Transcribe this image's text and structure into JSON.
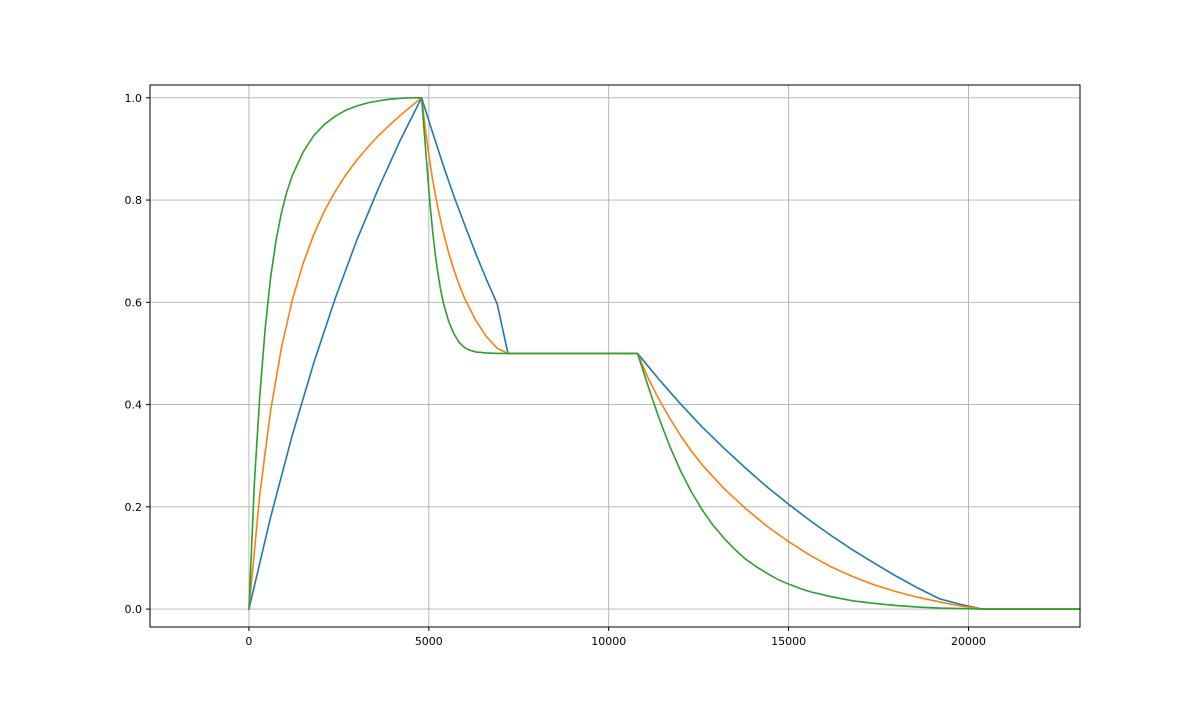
{
  "chart_data": {
    "type": "line",
    "title": "",
    "xlabel": "",
    "ylabel": "",
    "xlim": [
      -2750,
      23100
    ],
    "ylim": [
      -0.035,
      1.025
    ],
    "xticks": [
      0,
      5000,
      10000,
      15000,
      20000
    ],
    "xtick_labels": [
      "0",
      "5000",
      "10000",
      "15000",
      "20000"
    ],
    "yticks": [
      0.0,
      0.2,
      0.4,
      0.6,
      0.8,
      1.0
    ],
    "ytick_labels": [
      "0.0",
      "0.2",
      "0.4",
      "0.6",
      "0.8",
      "1.0"
    ],
    "grid": true,
    "legend": "none",
    "colors": [
      "#1f77b4",
      "#ff7f0e",
      "#2ca02c"
    ],
    "series": [
      {
        "color": "#1f77b4",
        "x": [
          0,
          600,
          1200,
          1800,
          2400,
          3000,
          3600,
          4200,
          4800,
          5100,
          5400,
          5700,
          6000,
          6300,
          6600,
          6900,
          7200,
          8000,
          9000,
          10000,
          10800,
          11400,
          12000,
          12600,
          13200,
          13800,
          14400,
          15000,
          15600,
          16200,
          16800,
          17400,
          18000,
          18600,
          19200,
          19800,
          20400,
          21500,
          23100
        ],
        "y": [
          0.0,
          0.179,
          0.339,
          0.481,
          0.608,
          0.722,
          0.823,
          0.916,
          1.0,
          0.933,
          0.868,
          0.807,
          0.751,
          0.696,
          0.645,
          0.597,
          0.5,
          0.5,
          0.5,
          0.5,
          0.5,
          0.449,
          0.401,
          0.356,
          0.315,
          0.276,
          0.239,
          0.205,
          0.173,
          0.143,
          0.115,
          0.089,
          0.064,
          0.041,
          0.02,
          0.009,
          0.0,
          0.0,
          0.0
        ]
      },
      {
        "color": "#ff7f0e",
        "x": [
          0,
          300,
          600,
          900,
          1200,
          1500,
          1800,
          2100,
          2400,
          2700,
          3000,
          3300,
          3600,
          3900,
          4200,
          4500,
          4800,
          4950,
          5100,
          5250,
          5400,
          5550,
          5700,
          5850,
          6000,
          6300,
          6600,
          6900,
          7200,
          8000,
          9000,
          10000,
          10800,
          11100,
          11400,
          11700,
          12000,
          12300,
          12600,
          13200,
          13800,
          14400,
          15000,
          15600,
          16200,
          16800,
          17400,
          18000,
          18600,
          19200,
          19800,
          20400,
          21500,
          23100
        ],
        "y": [
          0.0,
          0.223,
          0.387,
          0.51,
          0.603,
          0.675,
          0.732,
          0.779,
          0.817,
          0.85,
          0.878,
          0.903,
          0.926,
          0.946,
          0.965,
          0.983,
          1.0,
          0.913,
          0.842,
          0.785,
          0.738,
          0.697,
          0.663,
          0.633,
          0.607,
          0.565,
          0.533,
          0.51,
          0.5,
          0.5,
          0.5,
          0.5,
          0.5,
          0.451,
          0.41,
          0.373,
          0.339,
          0.309,
          0.282,
          0.236,
          0.197,
          0.162,
          0.132,
          0.105,
          0.082,
          0.063,
          0.047,
          0.034,
          0.023,
          0.014,
          0.006,
          0.0,
          0.0,
          0.0
        ]
      },
      {
        "color": "#2ca02c",
        "x": [
          0,
          150,
          300,
          450,
          600,
          750,
          900,
          1050,
          1200,
          1500,
          1800,
          2100,
          2400,
          2700,
          3000,
          3300,
          3600,
          3900,
          4200,
          4500,
          4800,
          4875,
          4950,
          5025,
          5100,
          5175,
          5250,
          5325,
          5400,
          5550,
          5700,
          5850,
          6000,
          6150,
          6300,
          6600,
          6900,
          7200,
          8000,
          9000,
          10000,
          10800,
          11100,
          11400,
          11700,
          12000,
          12300,
          12600,
          12900,
          13200,
          13500,
          13800,
          14100,
          14400,
          14700,
          15000,
          15300,
          15600,
          16200,
          16800,
          17400,
          18000,
          18600,
          19200,
          19800,
          20400,
          21500,
          23100
        ],
        "y": [
          0.0,
          0.245,
          0.415,
          0.548,
          0.647,
          0.72,
          0.774,
          0.815,
          0.847,
          0.893,
          0.926,
          0.948,
          0.964,
          0.976,
          0.984,
          0.99,
          0.994,
          0.997,
          0.999,
          1.0,
          1.0,
          0.931,
          0.864,
          0.799,
          0.743,
          0.696,
          0.658,
          0.626,
          0.6,
          0.563,
          0.538,
          0.521,
          0.511,
          0.506,
          0.503,
          0.501,
          0.5,
          0.5,
          0.5,
          0.5,
          0.5,
          0.5,
          0.435,
          0.373,
          0.318,
          0.27,
          0.229,
          0.194,
          0.164,
          0.139,
          0.117,
          0.098,
          0.083,
          0.07,
          0.058,
          0.049,
          0.041,
          0.034,
          0.024,
          0.016,
          0.011,
          0.007,
          0.004,
          0.002,
          0.001,
          0.0,
          0.0,
          0.0
        ]
      }
    ]
  }
}
